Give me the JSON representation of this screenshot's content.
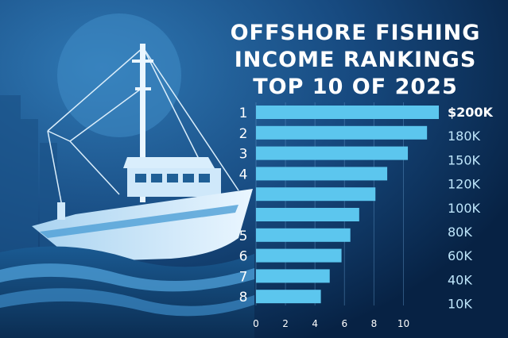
{
  "title_lines": [
    "OFFSHORE FISHING",
    "INCOME RANKINGS",
    "TOP 10 OF 2025"
  ],
  "colors": {
    "background_dark": "#082649",
    "background_light": "#1f5f96",
    "bar": "#5cc6ee",
    "text": "#ffffff",
    "value_text": "#bfe6fb"
  },
  "chart_data": {
    "type": "bar",
    "orientation": "horizontal",
    "rank_labels": [
      "1",
      "2",
      "3",
      "4",
      "",
      "",
      "5",
      "6",
      "7",
      "8"
    ],
    "values": [
      12.4,
      11.6,
      10.3,
      8.9,
      8.1,
      7.0,
      6.4,
      5.8,
      5.0,
      4.4
    ],
    "income_labels": [
      "$200K",
      "180K",
      "150K",
      "120K",
      "100K",
      "80K",
      "60K",
      "40K",
      "10K"
    ],
    "x_ticks": [
      0,
      2,
      4,
      6,
      8,
      10
    ],
    "xlim": [
      0,
      12.4
    ],
    "grid": true
  }
}
